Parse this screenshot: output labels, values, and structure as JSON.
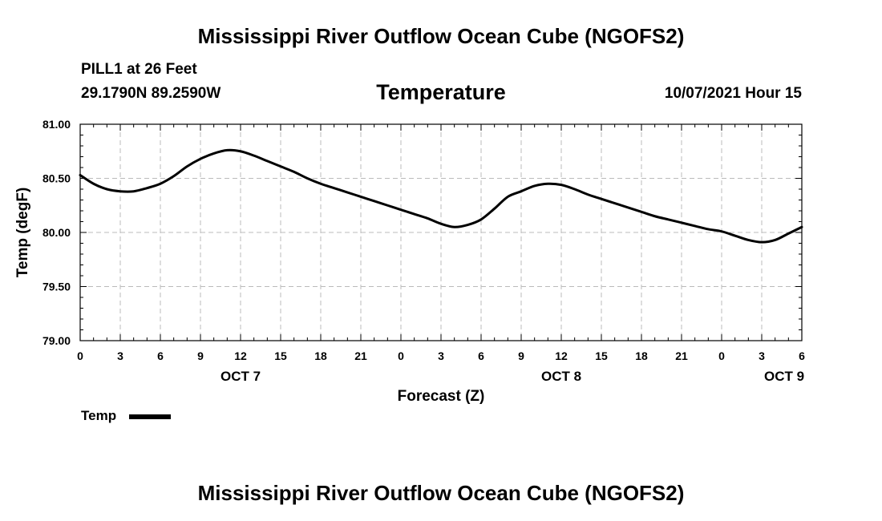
{
  "header": {
    "title": "Mississippi River Outflow Ocean Cube (NGOFS2)",
    "station": "PILL1 at 26 Feet",
    "coords": "29.1790N  89.2590W",
    "parameter": "Temperature",
    "datetime": "10/07/2021 Hour 15"
  },
  "footer": {
    "title": "Mississippi River Outflow Ocean Cube (NGOFS2)"
  },
  "legend": {
    "label": "Temp",
    "color": "#000000"
  },
  "chart_data": {
    "type": "line",
    "title": "Temperature",
    "xlabel": "Forecast (Z)",
    "ylabel": "Temp (degF)",
    "xlim": [
      0,
      54
    ],
    "ylim": [
      79.0,
      81.0
    ],
    "grid": true,
    "x_ticks": [
      {
        "value": 0,
        "label": "0"
      },
      {
        "value": 3,
        "label": "3"
      },
      {
        "value": 6,
        "label": "6"
      },
      {
        "value": 9,
        "label": "9"
      },
      {
        "value": 12,
        "label": "12"
      },
      {
        "value": 15,
        "label": "15"
      },
      {
        "value": 18,
        "label": "18"
      },
      {
        "value": 21,
        "label": "21"
      },
      {
        "value": 24,
        "label": "0"
      },
      {
        "value": 27,
        "label": "3"
      },
      {
        "value": 30,
        "label": "6"
      },
      {
        "value": 33,
        "label": "9"
      },
      {
        "value": 36,
        "label": "12"
      },
      {
        "value": 39,
        "label": "15"
      },
      {
        "value": 42,
        "label": "18"
      },
      {
        "value": 45,
        "label": "21"
      },
      {
        "value": 48,
        "label": "0"
      },
      {
        "value": 51,
        "label": "3"
      },
      {
        "value": 54,
        "label": "6"
      }
    ],
    "day_labels": [
      {
        "value": 12,
        "label": "OCT 7"
      },
      {
        "value": 36,
        "label": "OCT 8"
      },
      {
        "value": 54,
        "label": "OCT 9"
      }
    ],
    "y_ticks": [
      {
        "value": 79.0,
        "label": "79.00"
      },
      {
        "value": 79.5,
        "label": "79.50"
      },
      {
        "value": 80.0,
        "label": "80.00"
      },
      {
        "value": 80.5,
        "label": "80.50"
      },
      {
        "value": 81.0,
        "label": "81.00"
      }
    ],
    "series": [
      {
        "name": "Temp",
        "color": "#000000",
        "x": [
          0,
          1,
          2,
          3,
          4,
          5,
          6,
          7,
          8,
          9,
          10,
          11,
          12,
          13,
          14,
          15,
          16,
          17,
          18,
          19,
          20,
          21,
          22,
          23,
          24,
          25,
          26,
          27,
          28,
          29,
          30,
          31,
          32,
          33,
          34,
          35,
          36,
          37,
          38,
          39,
          40,
          41,
          42,
          43,
          44,
          45,
          46,
          47,
          48,
          49,
          50,
          51,
          52,
          53,
          54
        ],
        "values": [
          80.53,
          80.45,
          80.4,
          80.38,
          80.38,
          80.41,
          80.45,
          80.52,
          80.61,
          80.68,
          80.73,
          80.76,
          80.75,
          80.71,
          80.66,
          80.61,
          80.56,
          80.5,
          80.45,
          80.41,
          80.37,
          80.33,
          80.29,
          80.25,
          80.21,
          80.17,
          80.13,
          80.08,
          80.05,
          80.07,
          80.12,
          80.22,
          80.33,
          80.38,
          80.43,
          80.45,
          80.44,
          80.4,
          80.35,
          80.31,
          80.27,
          80.23,
          80.19,
          80.15,
          80.12,
          80.09,
          80.06,
          80.03,
          80.01,
          79.97,
          79.93,
          79.91,
          79.93,
          79.99,
          80.05
        ]
      }
    ]
  }
}
